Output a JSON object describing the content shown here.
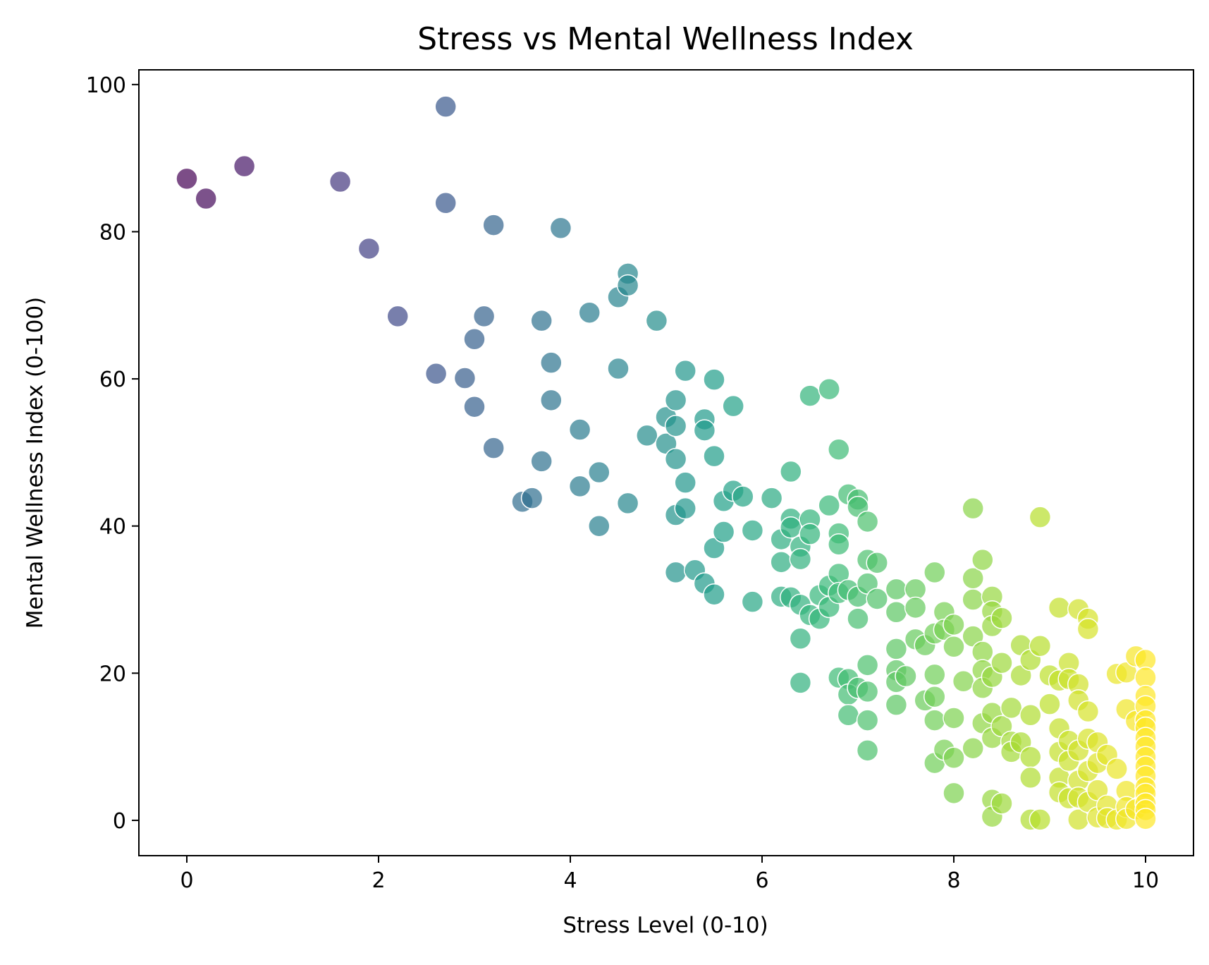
{
  "chart_data": {
    "type": "scatter",
    "title": "Stress vs Mental Wellness Index",
    "xlabel": "Stress Level (0-10)",
    "ylabel": "Mental Wellness Index (0-100)",
    "xlim": [
      -0.5,
      10.5
    ],
    "ylim": [
      -4.8,
      102
    ],
    "xticks": [
      0,
      2,
      4,
      6,
      8,
      10
    ],
    "yticks": [
      0,
      20,
      40,
      60,
      80,
      100
    ],
    "grid": false,
    "legend": "none",
    "colormap": "viridis",
    "color_by": "x",
    "marker_edge_color": "#ffffff",
    "marker_opacity": 0.7,
    "points": [
      [
        0.0,
        87.2
      ],
      [
        0.2,
        84.5
      ],
      [
        0.6,
        88.9
      ],
      [
        1.6,
        86.8
      ],
      [
        1.9,
        77.7
      ],
      [
        2.2,
        68.5
      ],
      [
        2.6,
        60.7
      ],
      [
        2.7,
        97.0
      ],
      [
        2.7,
        83.9
      ],
      [
        2.9,
        60.1
      ],
      [
        3.0,
        65.4
      ],
      [
        3.0,
        56.2
      ],
      [
        3.1,
        68.5
      ],
      [
        3.2,
        80.9
      ],
      [
        3.2,
        50.6
      ],
      [
        3.5,
        43.3
      ],
      [
        3.6,
        43.8
      ],
      [
        3.7,
        67.9
      ],
      [
        3.7,
        48.8
      ],
      [
        3.8,
        62.2
      ],
      [
        3.8,
        57.1
      ],
      [
        3.9,
        80.5
      ],
      [
        4.1,
        53.1
      ],
      [
        4.1,
        45.4
      ],
      [
        4.2,
        69.0
      ],
      [
        4.3,
        47.3
      ],
      [
        4.3,
        40.0
      ],
      [
        4.5,
        71.1
      ],
      [
        4.5,
        61.4
      ],
      [
        4.6,
        74.3
      ],
      [
        4.6,
        72.7
      ],
      [
        4.6,
        43.1
      ],
      [
        4.8,
        52.3
      ],
      [
        4.9,
        67.9
      ],
      [
        5.0,
        54.8
      ],
      [
        5.0,
        51.2
      ],
      [
        5.1,
        57.1
      ],
      [
        5.1,
        53.6
      ],
      [
        5.1,
        49.1
      ],
      [
        5.1,
        41.5
      ],
      [
        5.1,
        33.7
      ],
      [
        5.2,
        61.1
      ],
      [
        5.2,
        45.9
      ],
      [
        5.2,
        42.4
      ],
      [
        5.3,
        34.0
      ],
      [
        5.4,
        54.5
      ],
      [
        5.4,
        53.0
      ],
      [
        5.4,
        32.2
      ],
      [
        5.5,
        59.9
      ],
      [
        5.5,
        49.5
      ],
      [
        5.5,
        37.0
      ],
      [
        5.5,
        30.7
      ],
      [
        5.6,
        43.4
      ],
      [
        5.6,
        39.2
      ],
      [
        5.7,
        56.3
      ],
      [
        5.7,
        44.8
      ],
      [
        5.8,
        44.0
      ],
      [
        5.9,
        39.4
      ],
      [
        5.9,
        29.7
      ],
      [
        6.1,
        43.8
      ],
      [
        6.2,
        38.2
      ],
      [
        6.2,
        35.1
      ],
      [
        6.2,
        30.4
      ],
      [
        6.3,
        47.4
      ],
      [
        6.3,
        41.0
      ],
      [
        6.3,
        39.8
      ],
      [
        6.3,
        30.3
      ],
      [
        6.4,
        37.2
      ],
      [
        6.4,
        35.5
      ],
      [
        6.4,
        29.3
      ],
      [
        6.4,
        24.7
      ],
      [
        6.4,
        18.7
      ],
      [
        6.5,
        40.9
      ],
      [
        6.5,
        38.9
      ],
      [
        6.5,
        57.7
      ],
      [
        6.5,
        27.9
      ],
      [
        6.6,
        30.6
      ],
      [
        6.6,
        27.4
      ],
      [
        6.7,
        58.6
      ],
      [
        6.7,
        42.8
      ],
      [
        6.7,
        31.9
      ],
      [
        6.7,
        29.0
      ],
      [
        6.8,
        50.4
      ],
      [
        6.8,
        39.0
      ],
      [
        6.8,
        37.5
      ],
      [
        6.8,
        33.5
      ],
      [
        6.8,
        30.9
      ],
      [
        6.8,
        19.4
      ],
      [
        6.9,
        44.3
      ],
      [
        6.9,
        31.3
      ],
      [
        6.9,
        19.2
      ],
      [
        6.9,
        17.1
      ],
      [
        6.9,
        14.3
      ],
      [
        7.0,
        43.6
      ],
      [
        7.0,
        42.6
      ],
      [
        7.0,
        30.4
      ],
      [
        7.0,
        27.4
      ],
      [
        7.0,
        18.0
      ],
      [
        7.1,
        40.6
      ],
      [
        7.1,
        35.4
      ],
      [
        7.1,
        32.2
      ],
      [
        7.1,
        21.1
      ],
      [
        7.1,
        17.5
      ],
      [
        7.1,
        13.6
      ],
      [
        7.1,
        9.5
      ],
      [
        7.2,
        35.0
      ],
      [
        7.2,
        30.1
      ],
      [
        7.4,
        31.4
      ],
      [
        7.4,
        28.3
      ],
      [
        7.4,
        23.3
      ],
      [
        7.4,
        20.4
      ],
      [
        7.4,
        18.8
      ],
      [
        7.4,
        15.7
      ],
      [
        7.5,
        19.6
      ],
      [
        7.6,
        31.4
      ],
      [
        7.6,
        28.9
      ],
      [
        7.6,
        24.6
      ],
      [
        7.7,
        23.8
      ],
      [
        7.7,
        16.3
      ],
      [
        7.8,
        33.7
      ],
      [
        7.8,
        25.4
      ],
      [
        7.8,
        19.8
      ],
      [
        7.8,
        16.8
      ],
      [
        7.8,
        13.6
      ],
      [
        7.8,
        7.8
      ],
      [
        7.9,
        28.3
      ],
      [
        7.9,
        25.9
      ],
      [
        7.9,
        9.6
      ],
      [
        8.0,
        26.6
      ],
      [
        8.0,
        23.6
      ],
      [
        8.0,
        13.9
      ],
      [
        8.0,
        8.5
      ],
      [
        8.0,
        3.7
      ],
      [
        8.1,
        18.9
      ],
      [
        8.2,
        42.4
      ],
      [
        8.2,
        32.9
      ],
      [
        8.2,
        30.0
      ],
      [
        8.2,
        25.0
      ],
      [
        8.2,
        9.8
      ],
      [
        8.3,
        35.4
      ],
      [
        8.3,
        22.9
      ],
      [
        8.3,
        20.4
      ],
      [
        8.3,
        18.0
      ],
      [
        8.3,
        13.2
      ],
      [
        8.4,
        30.4
      ],
      [
        8.4,
        28.4
      ],
      [
        8.4,
        26.4
      ],
      [
        8.4,
        19.5
      ],
      [
        8.4,
        14.6
      ],
      [
        8.4,
        11.2
      ],
      [
        8.4,
        2.8
      ],
      [
        8.4,
        0.5
      ],
      [
        8.5,
        27.5
      ],
      [
        8.5,
        21.4
      ],
      [
        8.5,
        12.8
      ],
      [
        8.5,
        2.3
      ],
      [
        8.6,
        15.3
      ],
      [
        8.6,
        10.7
      ],
      [
        8.6,
        9.3
      ],
      [
        8.7,
        23.8
      ],
      [
        8.7,
        19.7
      ],
      [
        8.7,
        10.6
      ],
      [
        8.8,
        21.8
      ],
      [
        8.8,
        14.3
      ],
      [
        8.8,
        8.6
      ],
      [
        8.8,
        5.8
      ],
      [
        8.8,
        0.1
      ],
      [
        8.9,
        41.2
      ],
      [
        8.9,
        23.7
      ],
      [
        8.9,
        0.1
      ],
      [
        9.0,
        19.7
      ],
      [
        9.0,
        15.8
      ],
      [
        9.1,
        28.9
      ],
      [
        9.1,
        19.0
      ],
      [
        9.1,
        12.5
      ],
      [
        9.1,
        9.3
      ],
      [
        9.1,
        5.8
      ],
      [
        9.1,
        3.8
      ],
      [
        9.2,
        21.4
      ],
      [
        9.2,
        19.2
      ],
      [
        9.2,
        10.8
      ],
      [
        9.2,
        8.1
      ],
      [
        9.2,
        3.0
      ],
      [
        9.3,
        28.7
      ],
      [
        9.3,
        18.5
      ],
      [
        9.3,
        16.3
      ],
      [
        9.3,
        9.5
      ],
      [
        9.3,
        5.4
      ],
      [
        9.3,
        3.1
      ],
      [
        9.3,
        0.1
      ],
      [
        9.4,
        27.4
      ],
      [
        9.4,
        26.0
      ],
      [
        9.4,
        14.8
      ],
      [
        9.4,
        11.1
      ],
      [
        9.4,
        6.7
      ],
      [
        9.4,
        2.5
      ],
      [
        9.5,
        10.6
      ],
      [
        9.5,
        7.8
      ],
      [
        9.5,
        4.1
      ],
      [
        9.5,
        0.4
      ],
      [
        9.6,
        8.9
      ],
      [
        9.6,
        2.0
      ],
      [
        9.6,
        0.3
      ],
      [
        9.7,
        19.9
      ],
      [
        9.7,
        7.0
      ],
      [
        9.7,
        0.1
      ],
      [
        9.8,
        20.1
      ],
      [
        9.8,
        15.1
      ],
      [
        9.8,
        4.0
      ],
      [
        9.8,
        1.8
      ],
      [
        9.8,
        0.2
      ],
      [
        9.9,
        22.3
      ],
      [
        9.9,
        13.5
      ],
      [
        9.9,
        1.5
      ],
      [
        10.0,
        21.8
      ],
      [
        10.0,
        19.4
      ],
      [
        10.0,
        16.9
      ],
      [
        10.0,
        15.5
      ],
      [
        10.0,
        13.6
      ],
      [
        10.0,
        12.6
      ],
      [
        10.0,
        11.2
      ],
      [
        10.0,
        10.0
      ],
      [
        10.0,
        8.6
      ],
      [
        10.0,
        7.3
      ],
      [
        10.0,
        6.0
      ],
      [
        10.0,
        4.5
      ],
      [
        10.0,
        3.6
      ],
      [
        10.0,
        2.3
      ],
      [
        10.0,
        1.4
      ],
      [
        10.0,
        0.2
      ]
    ]
  }
}
